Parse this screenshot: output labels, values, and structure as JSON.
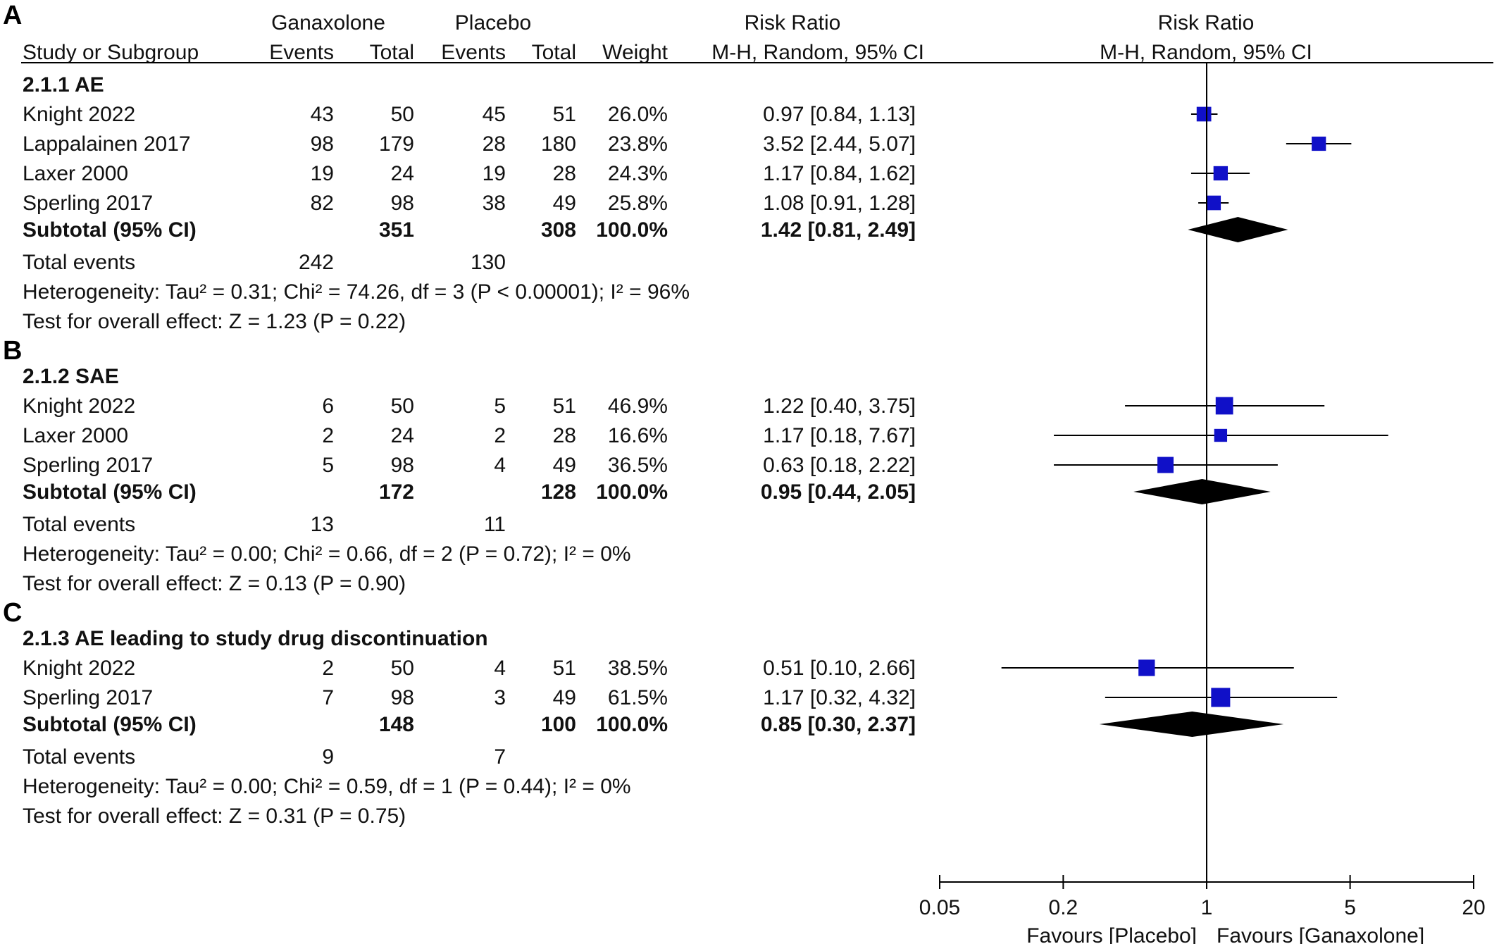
{
  "header": {
    "group1": "Ganaxolone",
    "group2": "Placebo",
    "rr_table": "Risk Ratio",
    "rr_plot": "Risk Ratio",
    "study_col": "Study or Subgroup",
    "events1": "Events",
    "total1": "Total",
    "events2": "Events",
    "total2": "Total",
    "weight": "Weight",
    "method_table": "M-H, Random, 95% CI",
    "method_plot": "M-H, Random, 95% CI"
  },
  "colors": {
    "marker": "#1010c8",
    "diamond": "#000000",
    "line": "#000000"
  },
  "chart_data": {
    "type": "forest",
    "x_scale": "log",
    "xlim": [
      0.05,
      20
    ],
    "x_ticks": [
      "0.05",
      "0.2",
      "1",
      "5",
      "20"
    ],
    "x_tick_values": [
      0.05,
      0.2,
      1,
      5,
      20
    ],
    "favours_left": "Favours [Placebo]",
    "favours_right": "Favours [Ganaxolone]",
    "panels": [
      {
        "label": "A",
        "title": "2.1.1 AE",
        "studies": [
          {
            "name": "Knight 2022",
            "e1": "43",
            "t1": "50",
            "e2": "45",
            "t2": "51",
            "weight": "26.0%",
            "ci": "0.97 [0.84, 1.13]",
            "rr": 0.97,
            "lo": 0.84,
            "hi": 1.13,
            "w": 26.0
          },
          {
            "name": "Lappalainen 2017",
            "e1": "98",
            "t1": "179",
            "e2": "28",
            "t2": "180",
            "weight": "23.8%",
            "ci": "3.52 [2.44, 5.07]",
            "rr": 3.52,
            "lo": 2.44,
            "hi": 5.07,
            "w": 23.8
          },
          {
            "name": "Laxer 2000",
            "e1": "19",
            "t1": "24",
            "e2": "19",
            "t2": "28",
            "weight": "24.3%",
            "ci": "1.17 [0.84, 1.62]",
            "rr": 1.17,
            "lo": 0.84,
            "hi": 1.62,
            "w": 24.3
          },
          {
            "name": "Sperling 2017",
            "e1": "82",
            "t1": "98",
            "e2": "38",
            "t2": "49",
            "weight": "25.8%",
            "ci": "1.08 [0.91, 1.28]",
            "rr": 1.08,
            "lo": 0.91,
            "hi": 1.28,
            "w": 25.8
          }
        ],
        "subtotal": {
          "label": "Subtotal (95% CI)",
          "t1": "351",
          "t2": "308",
          "weight": "100.0%",
          "ci": "1.42 [0.81, 2.49]",
          "rr": 1.42,
          "lo": 0.81,
          "hi": 2.49
        },
        "total_events": {
          "label": "Total events",
          "e1": "242",
          "e2": "130"
        },
        "heterogeneity": "Heterogeneity: Tau² = 0.31; Chi² = 74.26, df = 3 (P < 0.00001); I² = 96%",
        "overall": "Test for overall effect: Z = 1.23 (P = 0.22)"
      },
      {
        "label": "B",
        "title": "2.1.2 SAE",
        "studies": [
          {
            "name": "Knight 2022",
            "e1": "6",
            "t1": "50",
            "e2": "5",
            "t2": "51",
            "weight": "46.9%",
            "ci": "1.22 [0.40, 3.75]",
            "rr": 1.22,
            "lo": 0.4,
            "hi": 3.75,
            "w": 46.9
          },
          {
            "name": "Laxer 2000",
            "e1": "2",
            "t1": "24",
            "e2": "2",
            "t2": "28",
            "weight": "16.6%",
            "ci": "1.17 [0.18, 7.67]",
            "rr": 1.17,
            "lo": 0.18,
            "hi": 7.67,
            "w": 16.6
          },
          {
            "name": "Sperling 2017",
            "e1": "5",
            "t1": "98",
            "e2": "4",
            "t2": "49",
            "weight": "36.5%",
            "ci": "0.63 [0.18, 2.22]",
            "rr": 0.63,
            "lo": 0.18,
            "hi": 2.22,
            "w": 36.5
          }
        ],
        "subtotal": {
          "label": "Subtotal (95% CI)",
          "t1": "172",
          "t2": "128",
          "weight": "100.0%",
          "ci": "0.95 [0.44, 2.05]",
          "rr": 0.95,
          "lo": 0.44,
          "hi": 2.05
        },
        "total_events": {
          "label": "Total events",
          "e1": "13",
          "e2": "11"
        },
        "heterogeneity": "Heterogeneity: Tau² = 0.00; Chi² = 0.66, df = 2 (P = 0.72); I² = 0%",
        "overall": "Test for overall effect: Z = 0.13 (P = 0.90)"
      },
      {
        "label": "C",
        "title": "2.1.3 AE leading to study drug discontinuation",
        "studies": [
          {
            "name": "Knight 2022",
            "e1": "2",
            "t1": "50",
            "e2": "4",
            "t2": "51",
            "weight": "38.5%",
            "ci": "0.51 [0.10, 2.66]",
            "rr": 0.51,
            "lo": 0.1,
            "hi": 2.66,
            "w": 38.5
          },
          {
            "name": "Sperling 2017",
            "e1": "7",
            "t1": "98",
            "e2": "3",
            "t2": "49",
            "weight": "61.5%",
            "ci": "1.17 [0.32, 4.32]",
            "rr": 1.17,
            "lo": 0.32,
            "hi": 4.32,
            "w": 61.5
          }
        ],
        "subtotal": {
          "label": "Subtotal (95% CI)",
          "t1": "148",
          "t2": "100",
          "weight": "100.0%",
          "ci": "0.85 [0.30, 2.37]",
          "rr": 0.85,
          "lo": 0.3,
          "hi": 2.37
        },
        "total_events": {
          "label": "Total events",
          "e1": "9",
          "e2": "7"
        },
        "heterogeneity": "Heterogeneity: Tau² = 0.00; Chi² = 0.59, df = 1 (P = 0.44); I² = 0%",
        "overall": "Test for overall effect: Z = 0.31 (P = 0.75)"
      }
    ]
  }
}
